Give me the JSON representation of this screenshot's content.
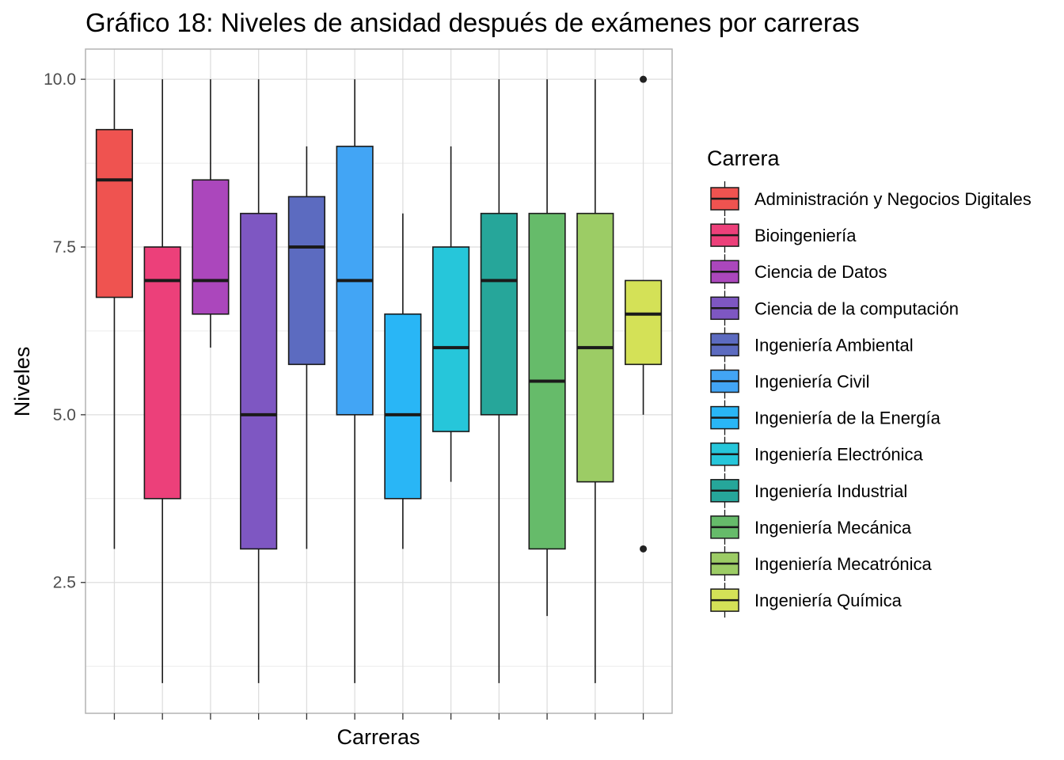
{
  "chart_data": {
    "type": "boxplot",
    "title": "Gráfico 18: Niveles de ansidad después de exámenes por carreras",
    "xlabel": "Carreras",
    "ylabel": "Niveles",
    "ylim": [
      0.55,
      10.45
    ],
    "y_ticks": [
      2.5,
      5.0,
      7.5,
      10.0
    ],
    "y_tick_labels": [
      "2.5",
      "5.0",
      "7.5",
      "10.0"
    ],
    "grid": true,
    "legend": {
      "title": "Carrera",
      "position": "right"
    },
    "series": [
      {
        "name": "Administración y Negocios Digitales",
        "color": "#EF5350",
        "whisker_low": 3,
        "q1": 6.75,
        "median": 8.5,
        "q3": 9.25,
        "whisker_high": 10,
        "outliers": []
      },
      {
        "name": "Bioingeniería",
        "color": "#EC407A",
        "whisker_low": 1,
        "q1": 3.75,
        "median": 7,
        "q3": 7.5,
        "whisker_high": 10,
        "outliers": []
      },
      {
        "name": "Ciencia de Datos",
        "color": "#AB47BC",
        "whisker_low": 6,
        "q1": 6.5,
        "median": 7,
        "q3": 8.5,
        "whisker_high": 10,
        "outliers": []
      },
      {
        "name": "Ciencia de la computación",
        "color": "#7E57C2",
        "whisker_low": 1,
        "q1": 3,
        "median": 5,
        "q3": 8,
        "whisker_high": 10,
        "outliers": []
      },
      {
        "name": "Ingeniería Ambiental",
        "color": "#5C6BC0",
        "whisker_low": 3,
        "q1": 5.75,
        "median": 7.5,
        "q3": 8.25,
        "whisker_high": 9,
        "outliers": []
      },
      {
        "name": "Ingeniería Civil",
        "color": "#42A5F5",
        "whisker_low": 1,
        "q1": 5,
        "median": 7,
        "q3": 9,
        "whisker_high": 10,
        "outliers": []
      },
      {
        "name": "Ingeniería de la Energía",
        "color": "#29B6F6",
        "whisker_low": 3,
        "q1": 3.75,
        "median": 5,
        "q3": 6.5,
        "whisker_high": 8,
        "outliers": []
      },
      {
        "name": "Ingeniería Electrónica",
        "color": "#26C6DA",
        "whisker_low": 4,
        "q1": 4.75,
        "median": 6,
        "q3": 7.5,
        "whisker_high": 9,
        "outliers": []
      },
      {
        "name": "Ingeniería Industrial",
        "color": "#26A69A",
        "whisker_low": 1,
        "q1": 5,
        "median": 7,
        "q3": 8,
        "whisker_high": 10,
        "outliers": []
      },
      {
        "name": "Ingeniería Mecánica",
        "color": "#66BB6A",
        "whisker_low": 2,
        "q1": 3,
        "median": 5.5,
        "q3": 8,
        "whisker_high": 10,
        "outliers": []
      },
      {
        "name": "Ingeniería Mecatrónica",
        "color": "#9CCC65",
        "whisker_low": 1,
        "q1": 4,
        "median": 6,
        "q3": 8,
        "whisker_high": 10,
        "outliers": []
      },
      {
        "name": "Ingeniería Química",
        "color": "#D4E157",
        "whisker_low": 5,
        "q1": 5.75,
        "median": 6.5,
        "q3": 7,
        "whisker_high": 7,
        "outliers": [
          3,
          10
        ]
      }
    ]
  }
}
